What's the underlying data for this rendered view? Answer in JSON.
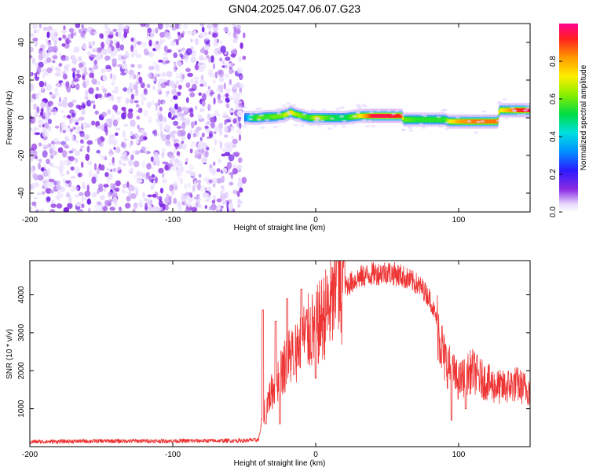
{
  "title": "GN04.2025.047.06.07.G23",
  "chart_data": [
    {
      "type": "heatmap",
      "xlabel": "Height of straight line (km)",
      "ylabel": "Frequency (Hz)",
      "xlim": [
        -200,
        150
      ],
      "ylim": [
        -50,
        50
      ],
      "x_ticks": [
        -200,
        -100,
        0,
        100
      ],
      "y_ticks": [
        -40,
        -20,
        0,
        20,
        40
      ],
      "colorbar": {
        "label": "Normalized spectral amplitude",
        "range": [
          0,
          1
        ],
        "ticks": [
          0.0,
          0.2,
          0.4,
          0.6,
          0.8
        ]
      },
      "noise_region": {
        "x_from": -200,
        "x_to": -50,
        "description_color": "#7a1ee8"
      },
      "signal_track": {
        "x": [
          -50,
          -45,
          -40,
          -35,
          -30,
          -25,
          -20,
          -18,
          -15,
          -10,
          -5,
          0,
          5,
          10,
          15,
          20,
          25,
          30,
          40,
          50,
          60,
          61,
          70,
          80,
          90,
          93,
          100,
          110,
          120,
          127,
          128,
          135,
          140,
          150
        ],
        "freq_hz": [
          0,
          0,
          0,
          0.5,
          0.5,
          1,
          2,
          3,
          2,
          1,
          0,
          0,
          0,
          0,
          0,
          0,
          0.5,
          1,
          1,
          1,
          1,
          -1,
          -1,
          -1,
          -1,
          -2,
          -2,
          -2,
          -2,
          -2,
          4,
          4,
          4,
          4
        ],
        "amplitude": [
          0.3,
          0.5,
          0.6,
          0.55,
          0.6,
          0.6,
          0.7,
          0.75,
          0.65,
          0.6,
          0.55,
          0.7,
          0.6,
          0.55,
          0.5,
          0.5,
          0.6,
          0.7,
          0.95,
          0.95,
          0.9,
          0.6,
          0.55,
          0.55,
          0.55,
          0.7,
          0.8,
          0.85,
          0.85,
          0.85,
          0.7,
          0.8,
          0.9,
          0.95
        ]
      }
    },
    {
      "type": "line",
      "xlabel": "Height of straight line (km)",
      "ylabel": "SNR (10 * v/v)",
      "xlim": [
        -200,
        150
      ],
      "ylim": [
        0,
        4900
      ],
      "x_ticks": [
        -200,
        -100,
        0,
        100
      ],
      "y_ticks": [
        1000,
        2000,
        3000,
        4000
      ],
      "color": "#ee3333",
      "envelope": {
        "x": [
          -200,
          -150,
          -100,
          -50,
          -40,
          -38,
          -35,
          -30,
          -25,
          -20,
          -15,
          -10,
          -5,
          0,
          5,
          10,
          15,
          20,
          30,
          40,
          50,
          60,
          70,
          75,
          80,
          85,
          88,
          90,
          95,
          100,
          105,
          110,
          115,
          120,
          125,
          130,
          135,
          140,
          145,
          150
        ],
        "y": [
          130,
          150,
          150,
          160,
          180,
          600,
          1100,
          1500,
          1900,
          2300,
          2500,
          2800,
          3000,
          3100,
          3400,
          3700,
          3900,
          4200,
          4450,
          4550,
          4600,
          4500,
          4300,
          4150,
          3900,
          3300,
          2700,
          2300,
          2000,
          1700,
          1900,
          2000,
          1800,
          1700,
          1600,
          1550,
          1600,
          1650,
          1550,
          1500
        ]
      },
      "spikes": [
        {
          "x": -37,
          "y": 3600
        },
        {
          "x": -35,
          "y": 600
        },
        {
          "x": -28,
          "y": 3300
        },
        {
          "x": -25,
          "y": 600
        },
        {
          "x": -20,
          "y": 3900
        },
        {
          "x": -15,
          "y": 1900
        },
        {
          "x": -10,
          "y": 4150
        },
        {
          "x": 0,
          "y": 1800
        },
        {
          "x": 15,
          "y": 4900
        },
        {
          "x": 20,
          "y": 4900
        },
        {
          "x": 95,
          "y": 700
        },
        {
          "x": 105,
          "y": 1000
        }
      ]
    }
  ]
}
